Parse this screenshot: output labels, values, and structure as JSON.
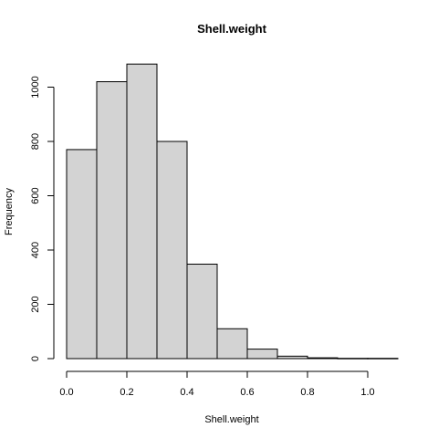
{
  "chart_data": {
    "type": "bar",
    "title": "Shell.weight",
    "xlabel": "Shell.weight",
    "ylabel": "Frequency",
    "bins": [
      {
        "x0": 0.0,
        "x1": 0.1,
        "value": 770
      },
      {
        "x0": 0.1,
        "x1": 0.2,
        "value": 1020
      },
      {
        "x0": 0.2,
        "x1": 0.3,
        "value": 1085
      },
      {
        "x0": 0.3,
        "x1": 0.4,
        "value": 800
      },
      {
        "x0": 0.4,
        "x1": 0.5,
        "value": 348
      },
      {
        "x0": 0.5,
        "x1": 0.6,
        "value": 110
      },
      {
        "x0": 0.6,
        "x1": 0.7,
        "value": 35
      },
      {
        "x0": 0.7,
        "x1": 0.8,
        "value": 9
      },
      {
        "x0": 0.8,
        "x1": 0.9,
        "value": 3
      },
      {
        "x0": 0.9,
        "x1": 1.0,
        "value": 1
      },
      {
        "x0": 1.0,
        "x1": 1.1,
        "value": 1
      }
    ],
    "xlim": [
      0.0,
      1.1
    ],
    "ylim": [
      0,
      1100
    ],
    "xticks": [
      "0.0",
      "0.2",
      "0.4",
      "0.6",
      "0.8",
      "1.0"
    ],
    "yticks": [
      "0",
      "200",
      "400",
      "600",
      "800",
      "1000"
    ],
    "bar_color": "#d3d3d3",
    "edge_color": "#000000",
    "grid": false
  }
}
